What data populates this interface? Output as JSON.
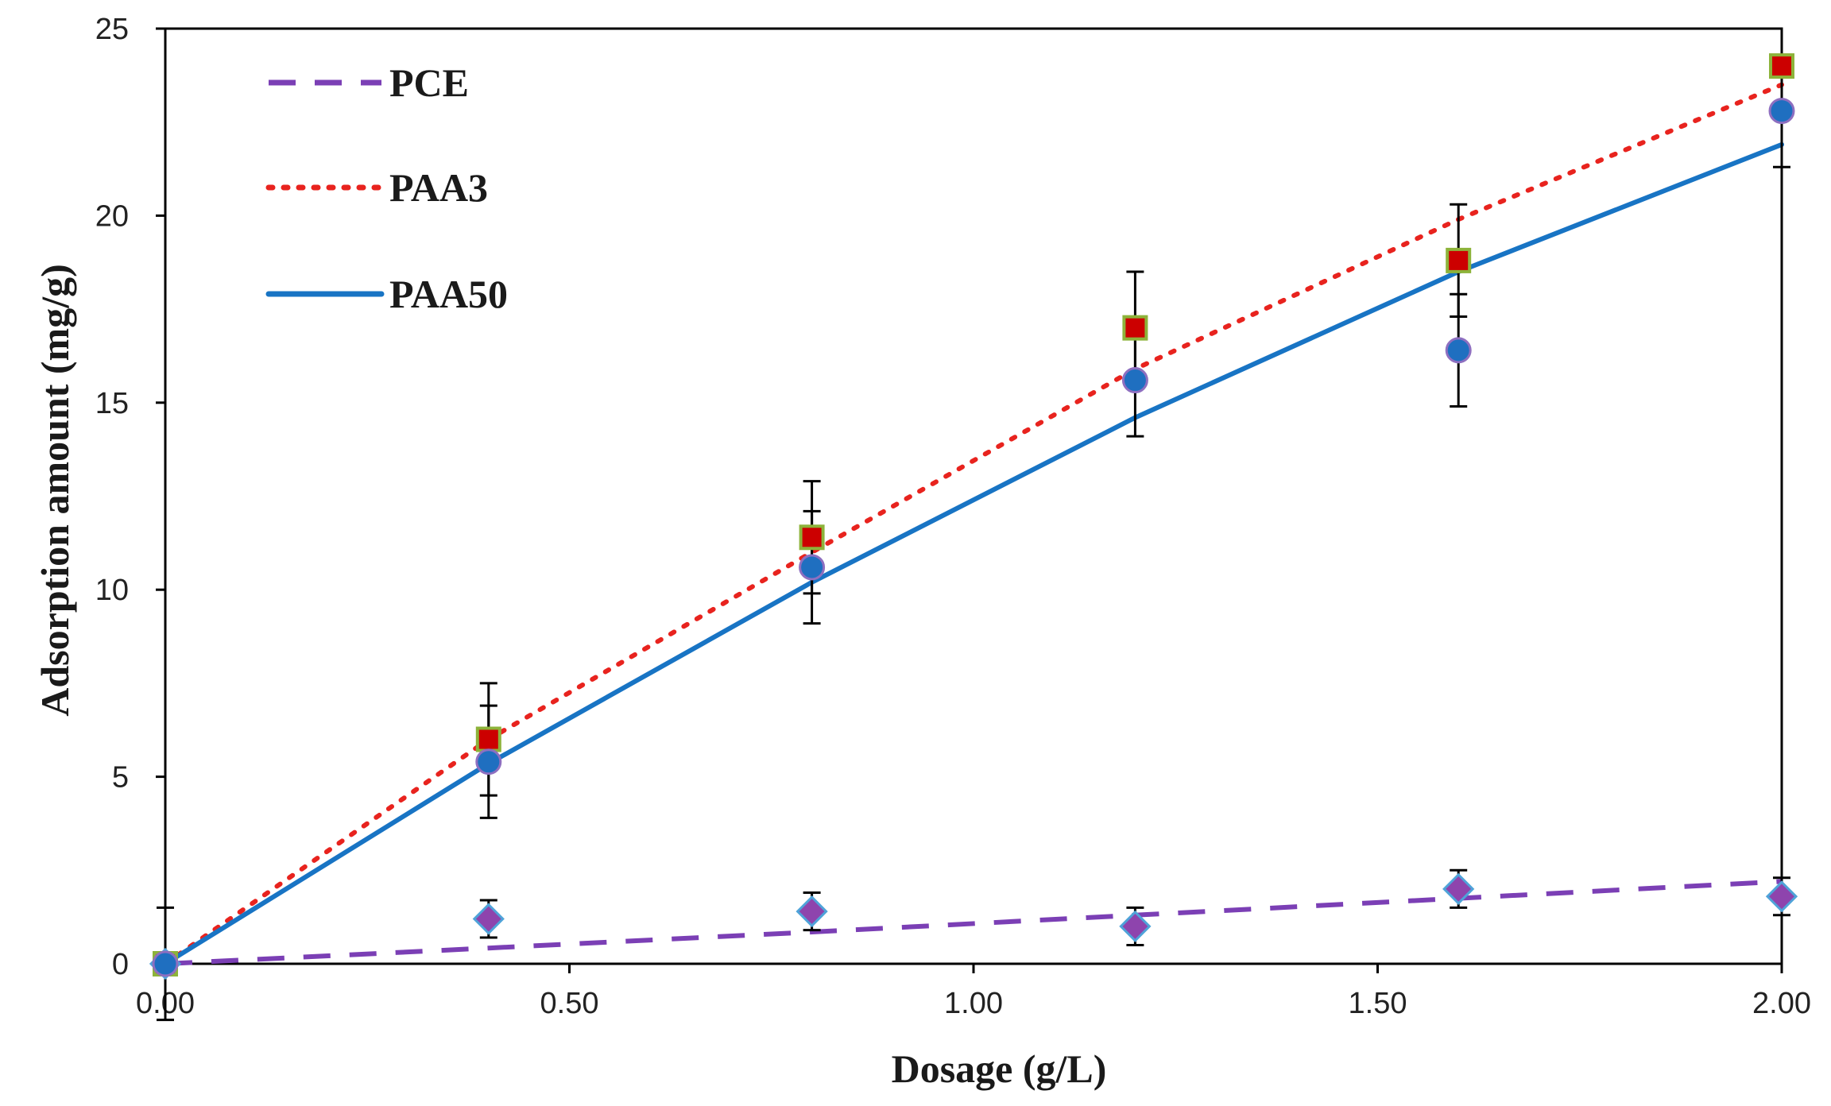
{
  "chart_data": {
    "type": "scatter",
    "title": "",
    "xlabel": "Dosage (g/L)",
    "ylabel": "Adsorption amount (mg/g)",
    "xlim": [
      0,
      2
    ],
    "ylim": [
      0,
      25
    ],
    "x_ticks": [
      "0.00",
      "0.50",
      "1.00",
      "1.50",
      "2.00"
    ],
    "y_ticks": [
      "0",
      "5",
      "10",
      "15",
      "20",
      "25"
    ],
    "grid": false,
    "legend_position": "top-left",
    "x": [
      0,
      0.4,
      0.8,
      1.2,
      1.6,
      2.0
    ],
    "series": [
      {
        "name": "PCE",
        "line_style": "dashed",
        "line_color": "#7B3FB5",
        "marker": "diamond",
        "marker_color": "#8E44AD",
        "marker_edge": "#4FA3D9",
        "values": [
          0,
          1.2,
          1.4,
          1.0,
          2.0,
          1.8
        ],
        "errors": [
          1.5,
          0.5,
          0.5,
          0.5,
          0.5,
          0.5
        ],
        "fit": [
          [
            0,
            0
          ],
          [
            0.4,
            0.42
          ],
          [
            0.8,
            0.85
          ],
          [
            1.2,
            1.3
          ],
          [
            1.6,
            1.75
          ],
          [
            2.0,
            2.2
          ]
        ]
      },
      {
        "name": "PAA3",
        "line_style": "dotted",
        "line_color": "#E8231E",
        "marker": "square",
        "marker_color": "#CC0000",
        "marker_edge": "#8DB33A",
        "values": [
          0,
          6.0,
          11.4,
          17.0,
          18.8,
          24.0
        ],
        "errors": [
          0.3,
          1.5,
          1.5,
          1.5,
          1.5,
          0
        ],
        "fit": [
          [
            0,
            0
          ],
          [
            0.4,
            6.0
          ],
          [
            0.8,
            11.0
          ],
          [
            1.2,
            15.9
          ],
          [
            1.6,
            19.9
          ],
          [
            2.0,
            23.5
          ]
        ]
      },
      {
        "name": "PAA50",
        "line_style": "solid",
        "line_color": "#1874C4",
        "marker": "circle",
        "marker_color": "#1F6FC0",
        "marker_edge": "#8E6FC0",
        "values": [
          0,
          5.4,
          10.6,
          15.6,
          16.4,
          22.8
        ],
        "errors": [
          0.3,
          1.5,
          1.5,
          1.5,
          1.5,
          1.5
        ],
        "fit": [
          [
            0,
            0
          ],
          [
            0.4,
            5.35
          ],
          [
            0.8,
            10.2
          ],
          [
            1.2,
            14.6
          ],
          [
            1.6,
            18.5
          ],
          [
            2.0,
            21.9
          ]
        ]
      }
    ]
  }
}
